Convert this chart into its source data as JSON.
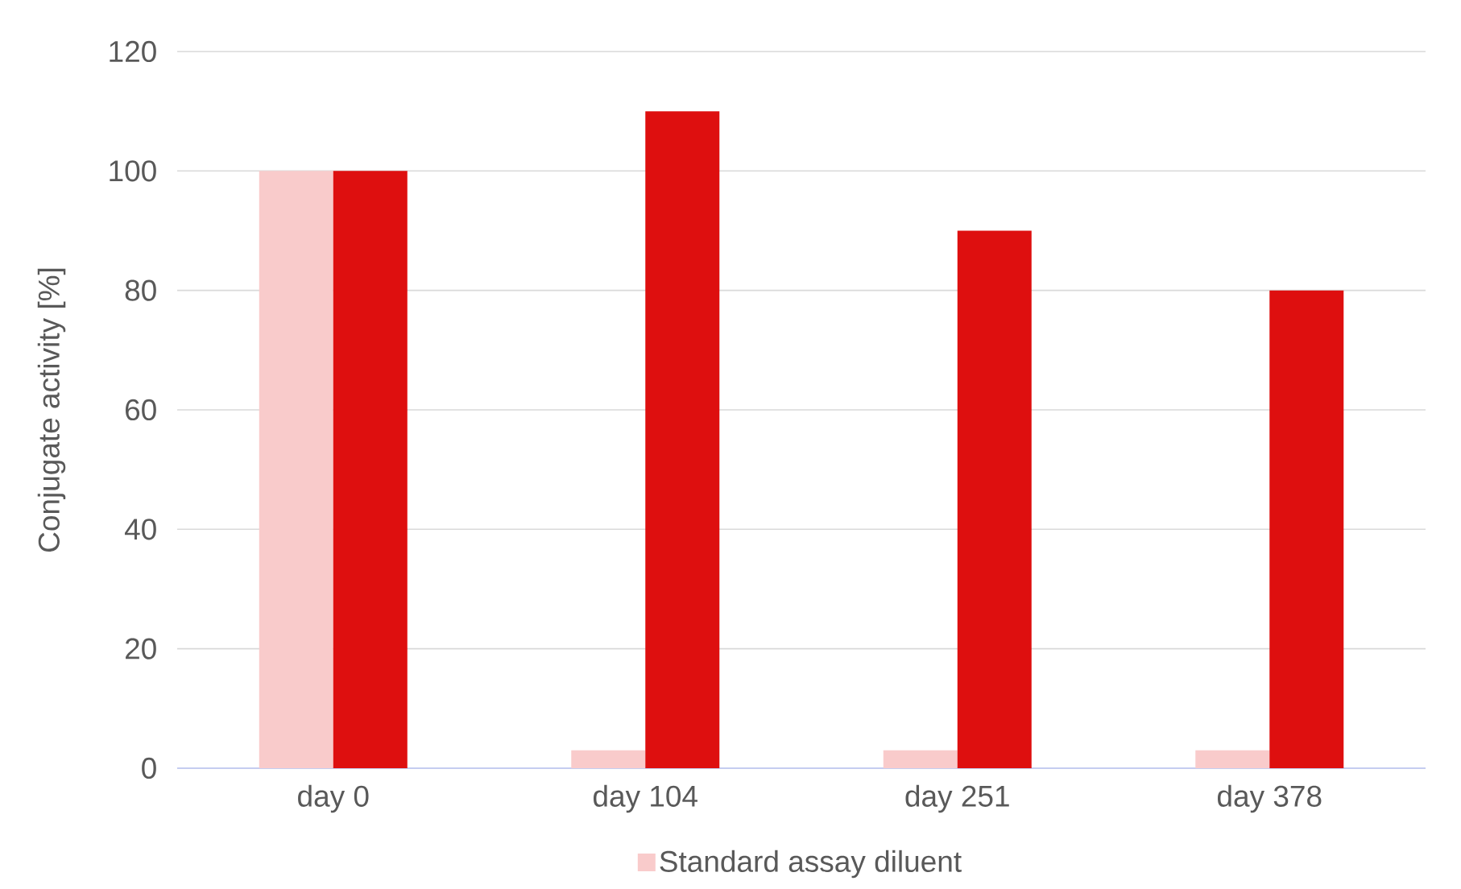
{
  "chart_data": {
    "type": "bar",
    "ylabel": "Conjugate activity [%]",
    "categories": [
      "day 0",
      "day 104",
      "day 251",
      "day 378"
    ],
    "series": [
      {
        "name": "Standard assay diluent",
        "color": "#f9cbcb",
        "values": [
          100,
          3,
          3,
          3
        ]
      },
      {
        "color": "#de0f0f",
        "values": [
          100,
          110,
          90,
          80
        ]
      }
    ],
    "ylim": [
      0,
      120
    ],
    "yticks": [
      0,
      20,
      40,
      60,
      80,
      100,
      120
    ],
    "grid": "y",
    "legend": "bottom"
  }
}
